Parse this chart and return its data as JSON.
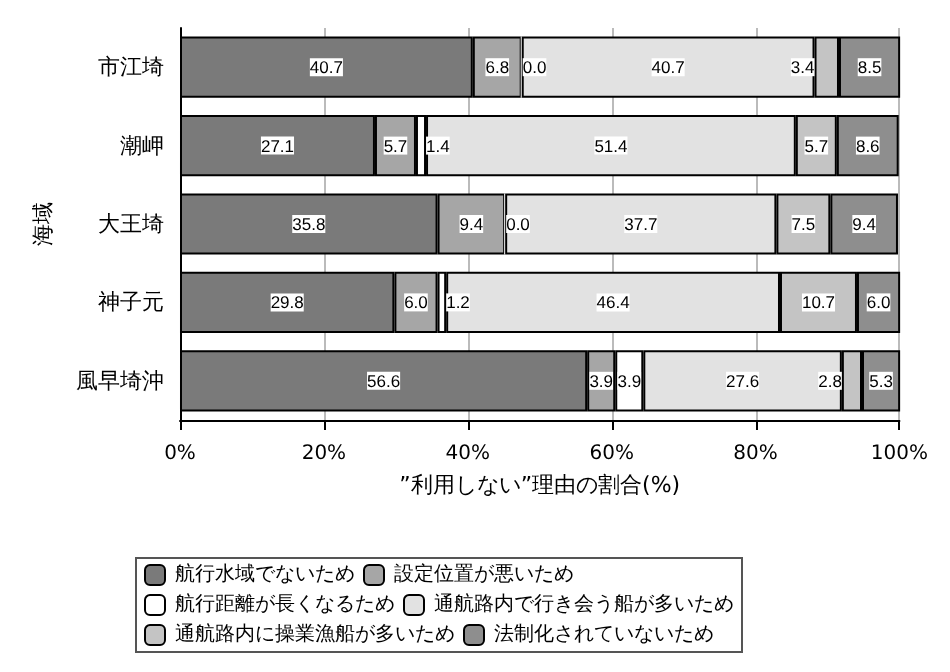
{
  "chart_data": {
    "type": "bar",
    "orientation": "horizontal",
    "stacked": true,
    "ylabel": "海域",
    "xlabel": "”利用しない”理由の割合(%)",
    "categories": [
      "市江埼",
      "潮岬",
      "大王埼",
      "神子元",
      "風早埼沖"
    ],
    "series": [
      {
        "name": "航行水域でないため",
        "color": "#7a7a7a",
        "values": [
          40.7,
          27.1,
          35.8,
          29.8,
          56.6
        ],
        "value_labels": [
          "40.7",
          "27.1",
          "35.8",
          "29.8",
          "56.6"
        ]
      },
      {
        "name": "設定位置が悪いため",
        "color": "#a6a6a6",
        "values": [
          6.8,
          5.7,
          9.4,
          6.0,
          3.9
        ],
        "value_labels": [
          "6.8",
          "5.7",
          "9.4",
          "6.0",
          "3.9"
        ]
      },
      {
        "name": "航行距離が長くなるため",
        "color": "#ffffff",
        "values": [
          0.0,
          1.4,
          0.0,
          1.2,
          3.9
        ],
        "value_labels": [
          "0.0",
          "1.4",
          "0.0",
          "1.2",
          "3.9"
        ]
      },
      {
        "name": "通航路内で行き会う船が多いため",
        "color": "#e2e2e2",
        "values": [
          40.7,
          51.4,
          37.7,
          46.4,
          27.6
        ],
        "value_labels": [
          "40.7",
          "51.4",
          "37.7",
          "46.4",
          "27.6"
        ]
      },
      {
        "name": "通航路内に操業漁船が多いため",
        "color": "#c4c4c4",
        "values": [
          3.4,
          5.7,
          7.5,
          10.7,
          2.8
        ],
        "value_labels": [
          "3.4",
          "5.7",
          "7.5",
          "10.7",
          "2.8"
        ]
      },
      {
        "name": "法制化されていないため",
        "color": "#8e8e8e",
        "values": [
          8.5,
          8.6,
          9.4,
          6.0,
          5.3
        ],
        "value_labels": [
          "8.5",
          "8.6",
          "9.4",
          "6.0",
          "5.3"
        ]
      }
    ],
    "xlim": [
      0,
      100
    ],
    "xticks": [
      {
        "value": 0,
        "label": "0%"
      },
      {
        "value": 20,
        "label": "20%"
      },
      {
        "value": 40,
        "label": "40%"
      },
      {
        "value": 60,
        "label": "60%"
      },
      {
        "value": 80,
        "label": "80%"
      },
      {
        "value": 100,
        "label": "100%"
      }
    ],
    "grid": "x",
    "legend": "bottom"
  }
}
